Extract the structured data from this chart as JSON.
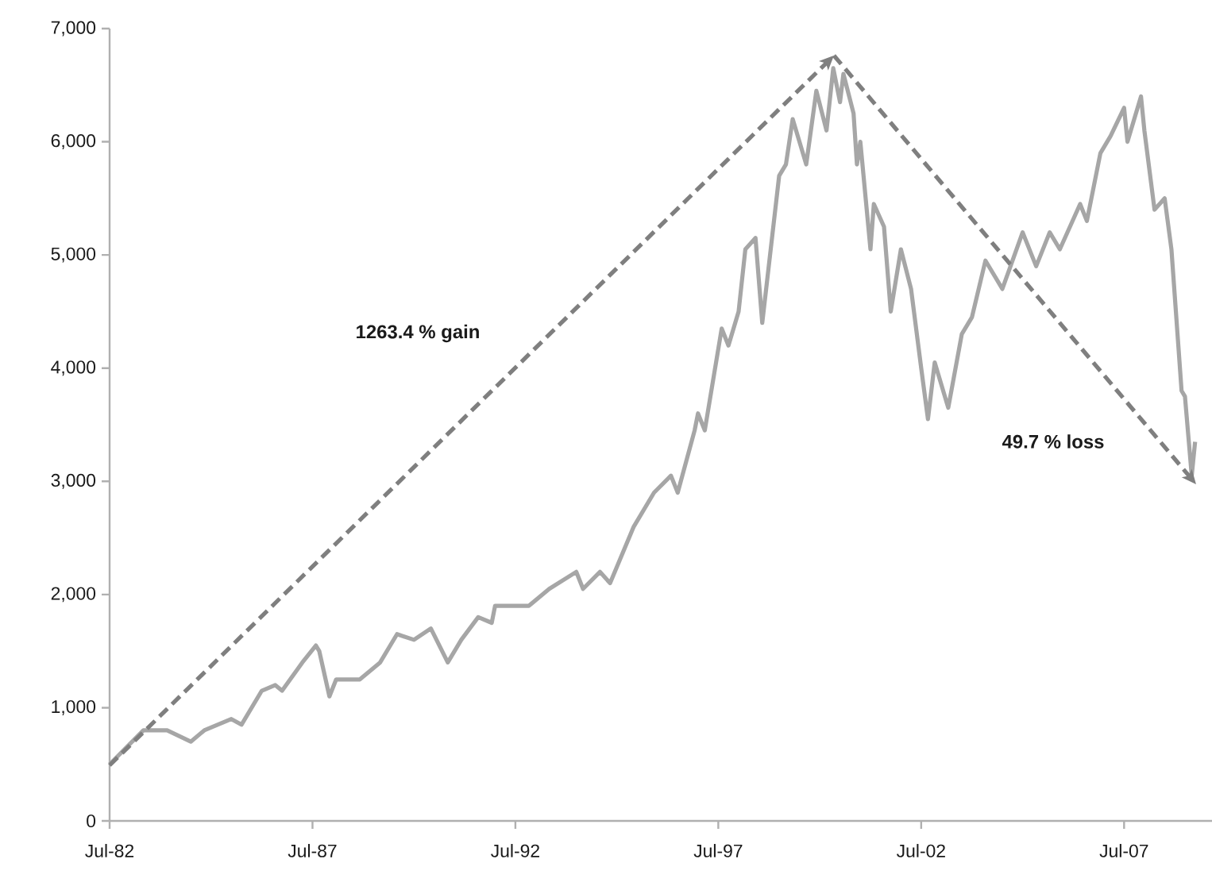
{
  "chart_data": {
    "type": "line",
    "xlim": [
      "1982-07",
      "2009-09"
    ],
    "ylim": [
      0,
      7000
    ],
    "xticks": [
      {
        "value": "1982-07",
        "label": "Jul-82"
      },
      {
        "value": "1987-07",
        "label": "Jul-87"
      },
      {
        "value": "1992-07",
        "label": "Jul-92"
      },
      {
        "value": "1997-07",
        "label": "Jul-97"
      },
      {
        "value": "2002-07",
        "label": "Jul-02"
      },
      {
        "value": "2007-07",
        "label": "Jul-07"
      }
    ],
    "yticks": [
      0,
      {
        "value": 1000,
        "label": "1,000"
      },
      {
        "value": 2000,
        "label": "2,000"
      },
      {
        "value": 3000,
        "label": "3,000"
      },
      {
        "value": 4000,
        "label": "4,000"
      },
      {
        "value": 5000,
        "label": "5,000"
      },
      {
        "value": 6000,
        "label": "6,000"
      },
      {
        "value": 7000,
        "label": "7,000"
      }
    ],
    "grid": false,
    "series": [
      {
        "color": "#a6a6a6",
        "line_style": "solid",
        "x": [
          "1982-07",
          "1983-05",
          "1983-12",
          "1984-07",
          "1984-11",
          "1985-07",
          "1985-10",
          "1986-04",
          "1986-08",
          "1986-10",
          "1987-04",
          "1987-08",
          "1987-09",
          "1987-12",
          "1988-02",
          "1988-09",
          "1989-03",
          "1989-08",
          "1990-01",
          "1990-06",
          "1990-11",
          "1991-03",
          "1991-08",
          "1991-12",
          "1992-01",
          "1992-11",
          "1993-05",
          "1994-01",
          "1994-03",
          "1994-08",
          "1994-11",
          "1995-06",
          "1995-12",
          "1996-05",
          "1996-07",
          "1996-12",
          "1997-01",
          "1997-03",
          "1997-08",
          "1997-10",
          "1998-01",
          "1998-03",
          "1998-06",
          "1998-08",
          "1999-01",
          "1999-03",
          "1999-05",
          "1999-09",
          "1999-12",
          "2000-03",
          "2000-05",
          "2000-07",
          "2000-08",
          "2000-11",
          "2000-12",
          "2001-01",
          "2001-04",
          "2001-05",
          "2001-08",
          "2001-10",
          "2002-01",
          "2002-04",
          "2002-07",
          "2002-09",
          "2002-11",
          "2003-03",
          "2003-07",
          "2003-10",
          "2004-02",
          "2004-07",
          "2005-01",
          "2005-05",
          "2005-09",
          "2005-12",
          "2006-06",
          "2006-08",
          "2006-12",
          "2007-03",
          "2007-07",
          "2007-08",
          "2007-12",
          "2008-01",
          "2008-04",
          "2008-07",
          "2008-09",
          "2008-12",
          "2009-01",
          "2009-03",
          "2009-04"
        ],
        "values": [
          500,
          800,
          800,
          700,
          800,
          900,
          850,
          1150,
          1200,
          1150,
          1400,
          1550,
          1500,
          1100,
          1250,
          1250,
          1400,
          1650,
          1600,
          1700,
          1400,
          1600,
          1800,
          1750,
          1900,
          1900,
          2050,
          2200,
          2050,
          2200,
          2100,
          2600,
          2900,
          3050,
          2900,
          3450,
          3600,
          3450,
          4350,
          4200,
          4500,
          5050,
          5150,
          4400,
          5700,
          5800,
          6200,
          5800,
          6450,
          6100,
          6650,
          6350,
          6600,
          6250,
          5800,
          6000,
          5050,
          5450,
          5250,
          4500,
          5050,
          4700,
          4000,
          3550,
          4050,
          3650,
          4300,
          4450,
          4950,
          4700,
          5200,
          4900,
          5200,
          5050,
          5450,
          5300,
          5900,
          6050,
          6300,
          6000,
          6400,
          6100,
          5400,
          5500,
          5050,
          3800,
          3750,
          3050,
          3350
        ]
      }
    ],
    "annotations": [
      "1263.4 % gain",
      "49.7 % loss"
    ]
  }
}
